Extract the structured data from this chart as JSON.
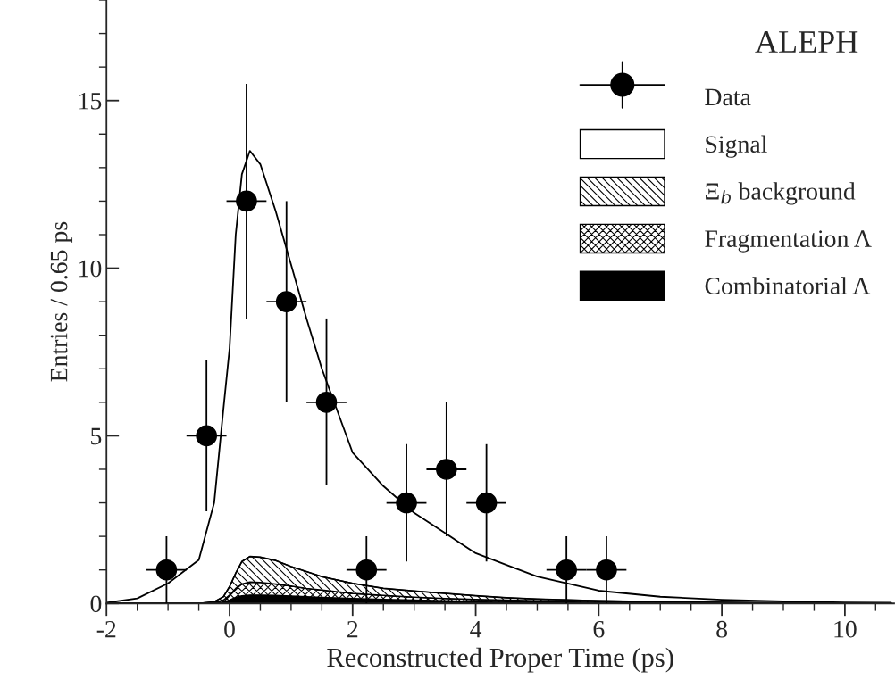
{
  "chart_data": {
    "type": "area",
    "stacked": true,
    "xlabel": "Reconstructed Proper Time (ps)",
    "ylabel": "Entries / 0.65 ps",
    "annotations": [
      "ALEPH"
    ],
    "x": [
      -2,
      -1.5,
      -1,
      -0.5,
      -0.25,
      -0.1,
      0,
      0.1,
      0.2,
      0.33,
      0.5,
      0.75,
      1,
      1.25,
      1.5,
      2,
      2.5,
      3,
      3.5,
      4,
      4.5,
      5,
      6,
      7,
      8,
      9,
      10,
      10.75
    ],
    "series": [
      {
        "name": "Combinatorial Λ",
        "color": "#000000",
        "values": [
          0,
          0,
          0,
          0,
          0.01,
          0.04,
          0.1,
          0.18,
          0.23,
          0.25,
          0.25,
          0.24,
          0.22,
          0.2,
          0.18,
          0.15,
          0.12,
          0.1,
          0.08,
          0.07,
          0.05,
          0.04,
          0.03,
          0.02,
          0.01,
          0.01,
          0,
          0
        ]
      },
      {
        "name": "Fragmentation Λ",
        "color": "#000000",
        "values": [
          0,
          0,
          0,
          0,
          0.01,
          0.06,
          0.15,
          0.27,
          0.35,
          0.39,
          0.38,
          0.34,
          0.3,
          0.25,
          0.22,
          0.15,
          0.12,
          0.09,
          0.07,
          0.05,
          0.05,
          0.04,
          0.02,
          0.01,
          0.01,
          0,
          0.01,
          0
        ]
      },
      {
        "name": "Ξ$_{b}$ background",
        "color": "#000000",
        "values": [
          0,
          0,
          0,
          0,
          0.03,
          0.1,
          0.25,
          0.45,
          0.67,
          0.76,
          0.75,
          0.7,
          0.58,
          0.5,
          0.4,
          0.3,
          0.21,
          0.18,
          0.15,
          0.11,
          0.07,
          0.05,
          0.03,
          0.02,
          0.01,
          0.01,
          0,
          0.01
        ]
      },
      {
        "name": "Signal",
        "color": "#ffffff",
        "values": [
          0.02,
          0.15,
          0.6,
          1.3,
          2.95,
          5.6,
          7.1,
          10.1,
          11.55,
          12.1,
          11.72,
          10.42,
          9.0,
          7.55,
          6.2,
          3.9,
          3.05,
          2.33,
          1.8,
          1.27,
          0.98,
          0.67,
          0.3,
          0.15,
          0.08,
          0.04,
          0.02,
          0.01
        ]
      },
      {
        "name": "Data",
        "type": "scatter",
        "marker": "circle",
        "color": "#000000",
        "x": [
          -1.025,
          -0.375,
          0.275,
          0.925,
          1.575,
          2.225,
          2.875,
          3.525,
          4.175,
          5.475,
          6.125
        ],
        "values": [
          1,
          5,
          12,
          9,
          6,
          1,
          3,
          4,
          3,
          1,
          1
        ],
        "errors": [
          [
            0,
            2
          ],
          [
            2.75,
            7.25
          ],
          [
            8.5,
            15.5
          ],
          [
            6,
            12
          ],
          [
            3.55,
            8.5
          ],
          [
            0,
            2
          ],
          [
            1.25,
            4.75
          ],
          [
            2,
            6
          ],
          [
            1.25,
            4.75
          ],
          [
            0,
            2
          ],
          [
            0,
            2
          ]
        ],
        "xerrors": [
          0.325,
          0.325,
          0.325,
          0.325,
          0.325,
          0.325,
          0.325,
          0.325,
          0.325,
          0.325,
          0.325
        ]
      }
    ],
    "xlim": [
      -2,
      10.8
    ],
    "ylim": [
      0,
      18
    ],
    "xticks": [
      -2,
      0,
      2,
      4,
      6,
      8,
      10
    ],
    "yticks": [
      0,
      5,
      10,
      15
    ],
    "legend": "top right",
    "grid": false
  }
}
